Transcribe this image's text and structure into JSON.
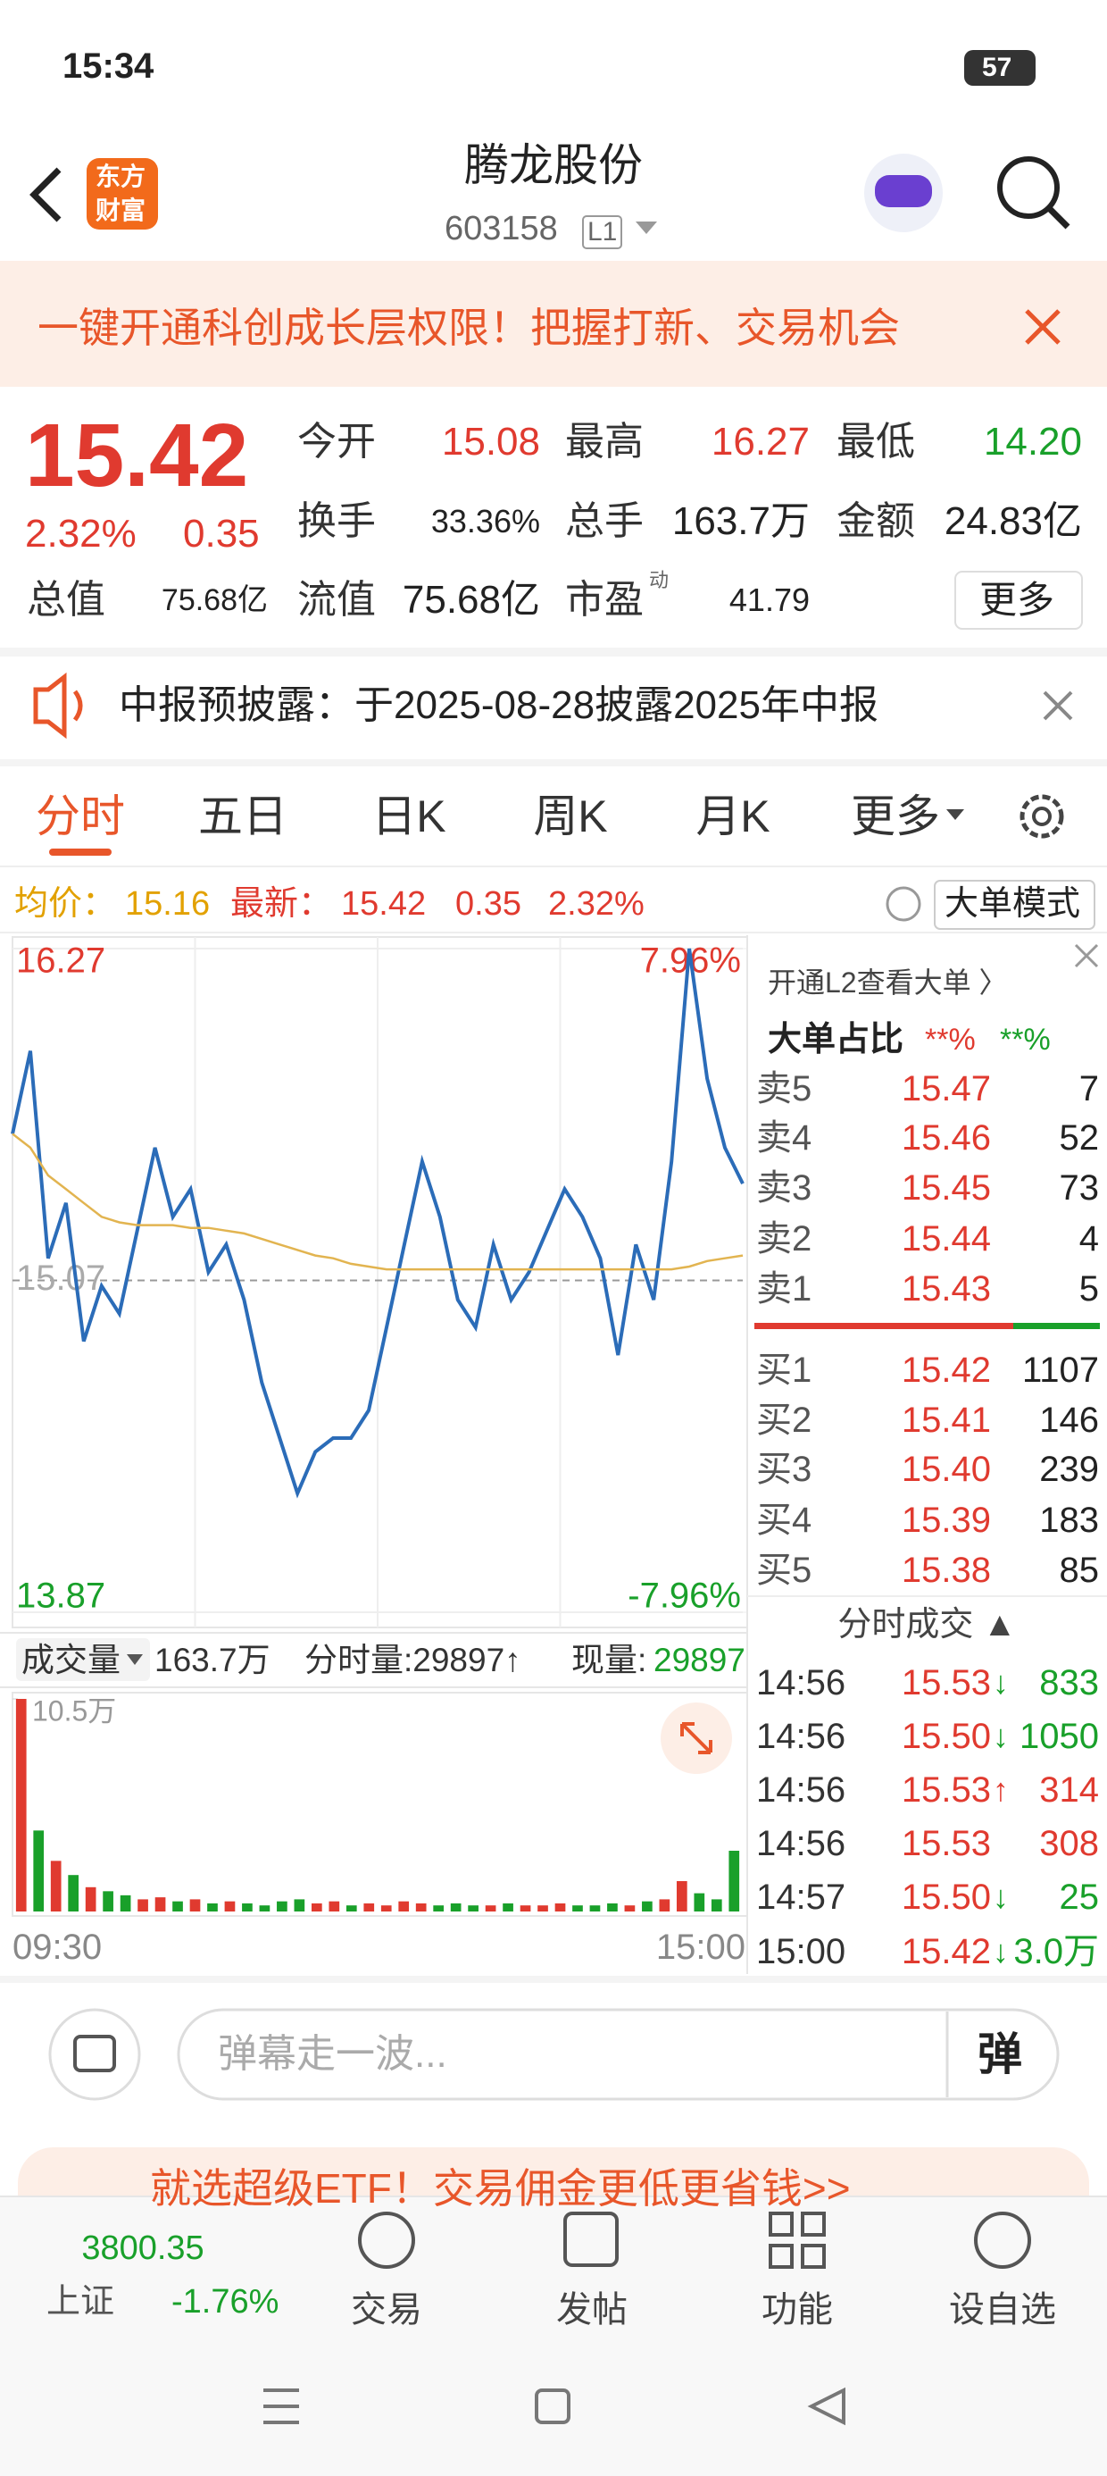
{
  "status_bar": {
    "time": "15:34",
    "battery": "57"
  },
  "header": {
    "logo": [
      "东方",
      "财富"
    ],
    "title": "腾龙股份",
    "code": "603158",
    "level": "L1"
  },
  "banner": {
    "text": "一键开通科创成长层权限！把握打新、交易机会"
  },
  "quote": {
    "price": "15.42",
    "change_pct": "2.32%",
    "change": "0.35",
    "rows": [
      [
        {
          "label": "今开",
          "value": "15.08",
          "color": "red"
        },
        {
          "label": "最高",
          "value": "16.27",
          "color": "red"
        },
        {
          "label": "最低",
          "value": "14.20",
          "color": "green"
        }
      ],
      [
        {
          "label": "换手",
          "value": "33.36%"
        },
        {
          "label": "总手",
          "value": "163.7万"
        },
        {
          "label": "金额",
          "value": "24.83亿"
        }
      ],
      [
        {
          "label": "总值",
          "value": "75.68亿"
        },
        {
          "label": "流值",
          "value": "75.68亿"
        },
        {
          "label": "市盈",
          "value": "41.79",
          "sup": "动"
        }
      ]
    ],
    "more": "更多"
  },
  "notice": {
    "text": "中报预披露：于2025-08-28披露2025年中报"
  },
  "tabs": [
    "分时",
    "五日",
    "日K",
    "周K",
    "月K",
    "更多"
  ],
  "info": {
    "avg_label": "均价：",
    "avg": "15.16",
    "latest_label": "最新：",
    "latest": "15.42",
    "change": "0.35",
    "change_pct": "2.32%",
    "mode": "大单模式"
  },
  "chart_data": [
    {
      "type": "line",
      "ylim": [
        13.87,
        16.27
      ],
      "yticks": [
        16.27,
        15.07,
        13.87
      ],
      "y2lim": [
        -7.96,
        7.96
      ],
      "y2ticks": [
        {
          "value": 7.96,
          "label": "7.96%"
        },
        {
          "value": -7.96,
          "label": "-7.96%"
        }
      ],
      "series": [
        {
          "color": "#2b6cb8",
          "values": [
            15.6,
            15.9,
            15.15,
            15.35,
            14.85,
            15.05,
            14.95,
            15.25,
            15.55,
            15.3,
            15.4,
            15.1,
            15.2,
            15.0,
            14.7,
            14.5,
            14.3,
            14.45,
            14.5,
            14.5,
            14.6,
            14.9,
            15.2,
            15.5,
            15.3,
            15.0,
            14.9,
            15.2,
            15.0,
            15.1,
            15.25,
            15.4,
            15.3,
            15.15,
            14.8,
            15.2,
            15.0,
            15.5,
            16.27,
            15.8,
            15.55,
            15.42
          ]
        },
        {
          "color": "#e2b450",
          "values": [
            15.6,
            15.55,
            15.45,
            15.4,
            15.35,
            15.3,
            15.28,
            15.27,
            15.27,
            15.27,
            15.26,
            15.26,
            15.25,
            15.24,
            15.22,
            15.2,
            15.18,
            15.16,
            15.15,
            15.13,
            15.12,
            15.11,
            15.11,
            15.11,
            15.11,
            15.11,
            15.11,
            15.11,
            15.11,
            15.11,
            15.11,
            15.11,
            15.11,
            15.11,
            15.11,
            15.11,
            15.11,
            15.11,
            15.12,
            15.14,
            15.15,
            15.16
          ]
        }
      ]
    },
    {
      "type": "bar",
      "ylim": [
        0,
        10.5
      ],
      "yticks": [
        {
          "value": 10.5,
          "label": "10.5万"
        }
      ],
      "x_labels": [
        "09:30",
        "15:00"
      ],
      "values": [
        10.5,
        4.0,
        2.5,
        1.8,
        1.2,
        1.0,
        0.8,
        0.6,
        0.7,
        0.5,
        0.6,
        0.4,
        0.5,
        0.4,
        0.3,
        0.5,
        0.6,
        0.4,
        0.5,
        0.3,
        0.4,
        0.3,
        0.5,
        0.4,
        0.3,
        0.4,
        0.3,
        0.3,
        0.4,
        0.3,
        0.3,
        0.4,
        0.3,
        0.3,
        0.4,
        0.3,
        0.5,
        0.6,
        1.5,
        0.9,
        0.6,
        3.0
      ],
      "colors": [
        "#e03a2f",
        "#19a02a",
        "#e03a2f",
        "#19a02a",
        "#e03a2f",
        "#19a02a",
        "#19a02a",
        "#e03a2f",
        "#e03a2f",
        "#19a02a",
        "#e03a2f",
        "#19a02a",
        "#e03a2f",
        "#19a02a",
        "#19a02a",
        "#19a02a",
        "#19a02a",
        "#e03a2f",
        "#e03a2f",
        "#19a02a",
        "#e03a2f",
        "#e03a2f",
        "#e03a2f",
        "#e03a2f",
        "#19a02a",
        "#19a02a",
        "#19a02a",
        "#e03a2f",
        "#19a02a",
        "#e03a2f",
        "#e03a2f",
        "#e03a2f",
        "#19a02a",
        "#19a02a",
        "#19a02a",
        "#e03a2f",
        "#19a02a",
        "#e03a2f",
        "#e03a2f",
        "#19a02a",
        "#19a02a",
        "#19a02a"
      ]
    }
  ],
  "volume_bar": {
    "label": "成交量",
    "total": "163.7万",
    "minute": "分时量:29897↑",
    "now_label": "现量:",
    "now": "29897"
  },
  "order_panel": {
    "l2": "开通L2查看大单 〉",
    "ratio_label": "大单占比",
    "ratio_sell": "**%",
    "ratio_buy": "**%",
    "asks": [
      [
        "卖5",
        "15.47",
        "7"
      ],
      [
        "卖4",
        "15.46",
        "52"
      ],
      [
        "卖3",
        "15.45",
        "73"
      ],
      [
        "卖2",
        "15.44",
        "4"
      ],
      [
        "卖1",
        "15.43",
        "5"
      ]
    ],
    "bids": [
      [
        "买1",
        "15.42",
        "1107"
      ],
      [
        "买2",
        "15.41",
        "146"
      ],
      [
        "买3",
        "15.40",
        "239"
      ],
      [
        "买4",
        "15.39",
        "183"
      ],
      [
        "买5",
        "15.38",
        "85"
      ]
    ],
    "trades_title": "分时成交 ▲",
    "trades": [
      {
        "time": "14:56",
        "price": "15.53",
        "arrow": "↓",
        "volume": "833",
        "color": "green"
      },
      {
        "time": "14:56",
        "price": "15.50",
        "arrow": "↓",
        "volume": "1050",
        "color": "green"
      },
      {
        "time": "14:56",
        "price": "15.53",
        "arrow": "↑",
        "volume": "314",
        "color": "red"
      },
      {
        "time": "14:56",
        "price": "15.53",
        "arrow": "",
        "volume": "308",
        "color": "red"
      },
      {
        "time": "14:57",
        "price": "15.50",
        "arrow": "↓",
        "volume": "25",
        "color": "green"
      },
      {
        "time": "15:00",
        "price": "15.42",
        "arrow": "↓",
        "volume": "3.0万",
        "color": "green"
      }
    ]
  },
  "comment": {
    "placeholder": "弹幕走一波...",
    "button": "弹"
  },
  "ad": {
    "text": "就选超级ETF！交易佣金更低更省钱>>"
  },
  "bottom_nav": {
    "index_value": "3800.35",
    "index_name": "上证",
    "index_change": "-1.76%",
    "items": [
      "交易",
      "发帖",
      "功能",
      "设自选"
    ]
  }
}
